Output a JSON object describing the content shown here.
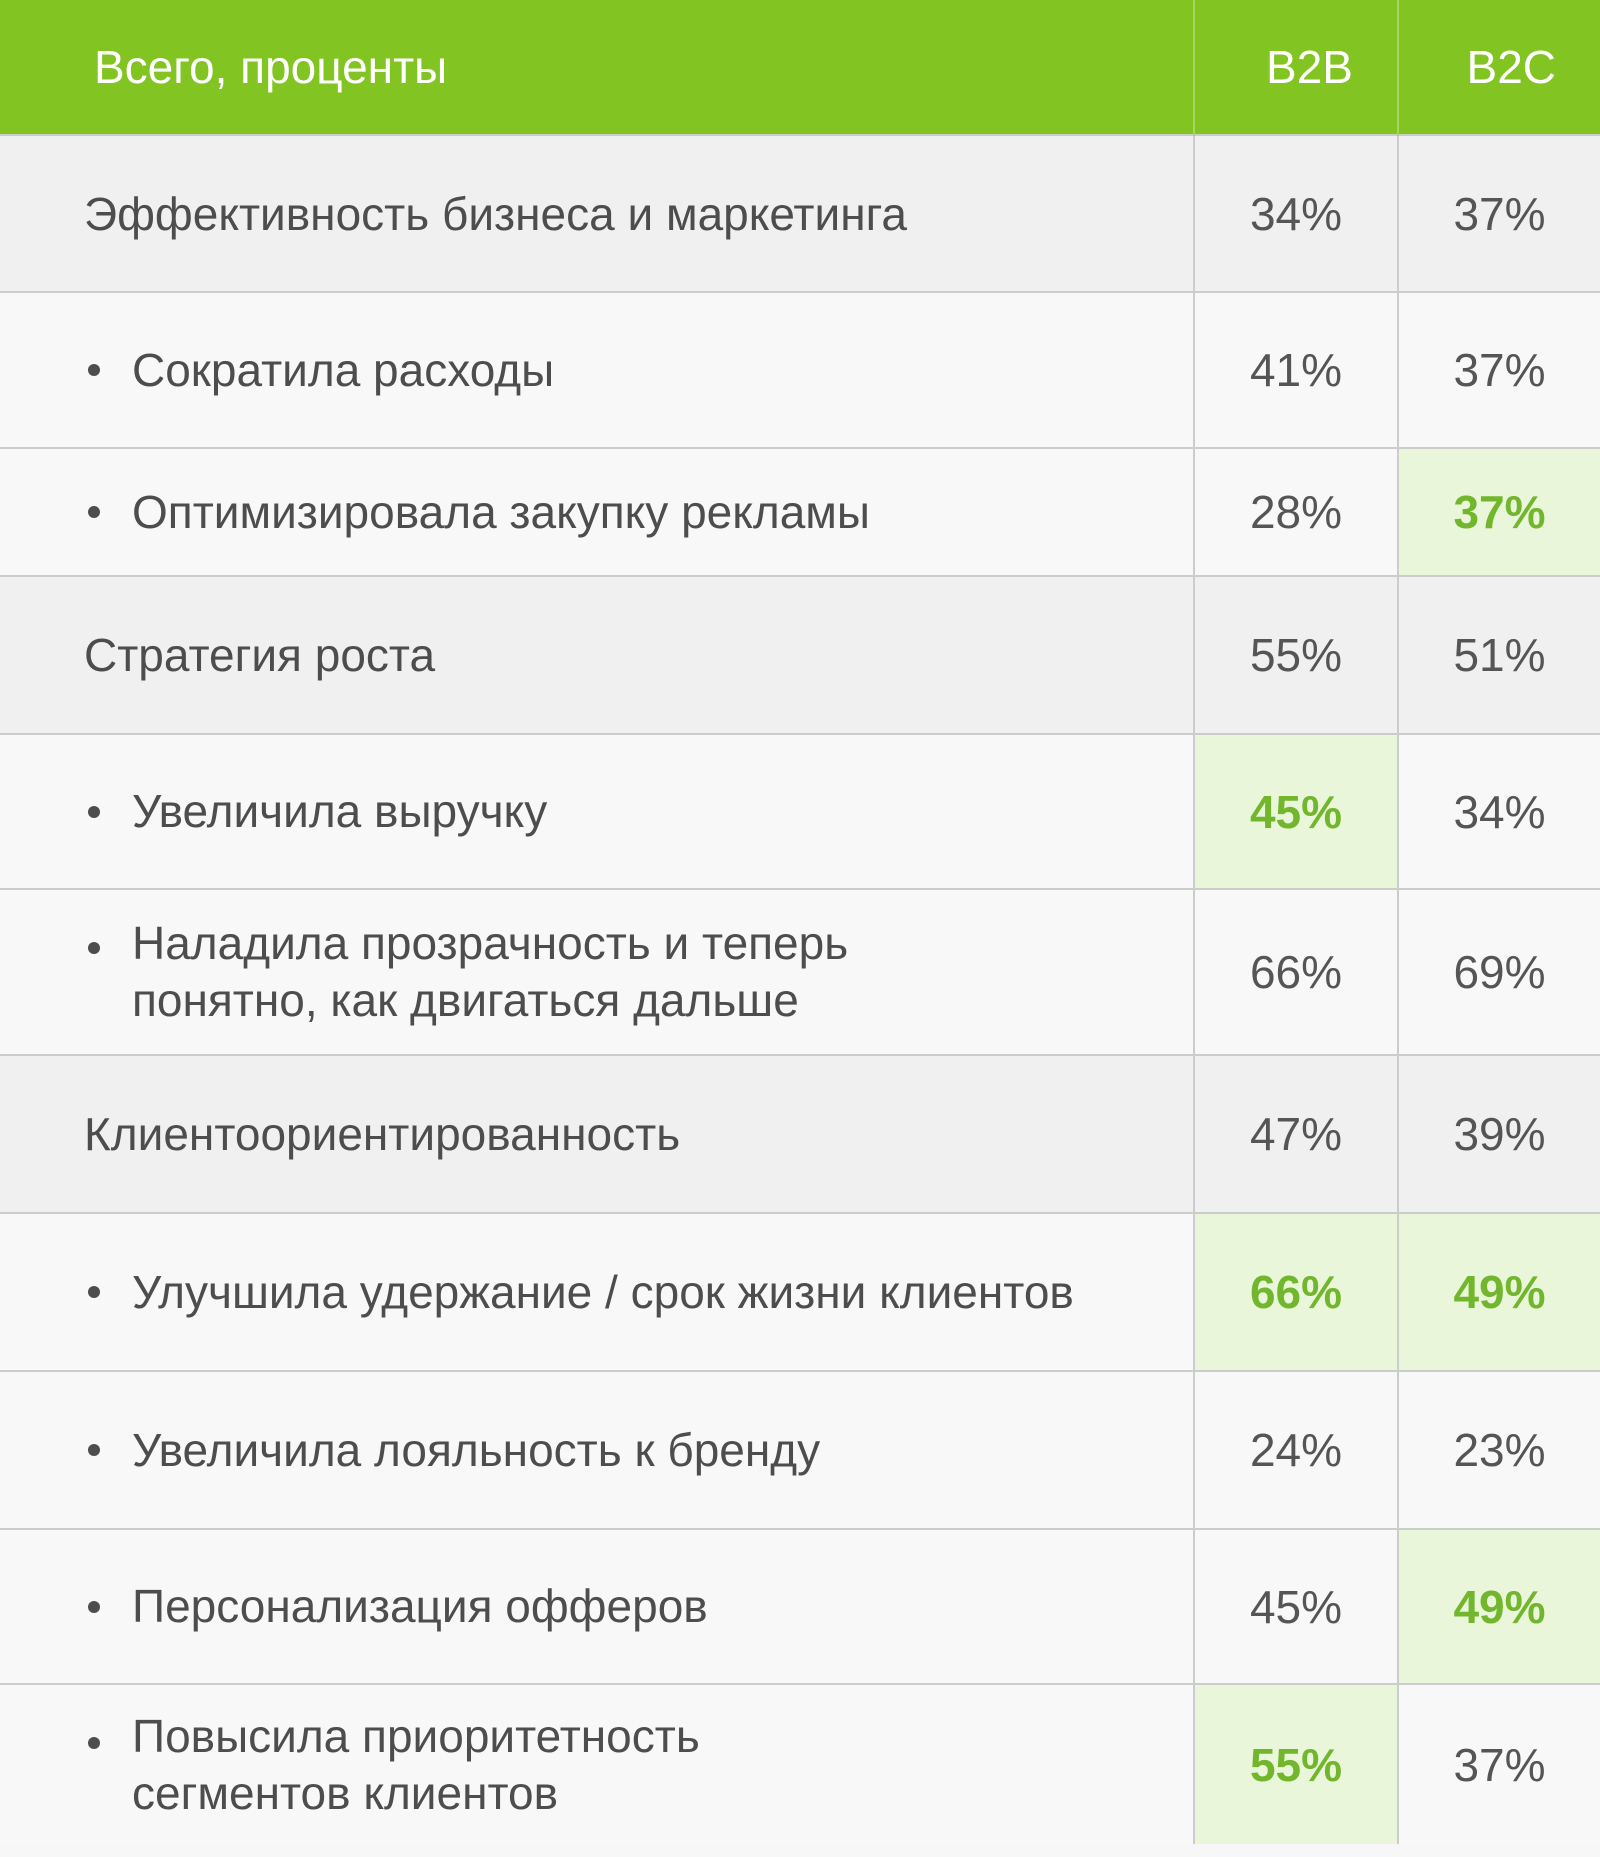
{
  "colors": {
    "header_bg": "#82c421",
    "header_text": "#ffffff",
    "category_row_bg": "#f1f0f0",
    "item_row_bg": "#f8f8f8",
    "highlight_bg": "#eaf6d9",
    "highlight_text": "#72b62d",
    "grid": "#cccccc"
  },
  "chart_data": {
    "type": "table",
    "columns": [
      "Всего, проценты",
      "B2B",
      "B2C"
    ],
    "rows": [
      {
        "label": "Эффективность бизнеса и маркетинга",
        "level": "category",
        "b2b": "34%",
        "b2c": "37%",
        "highlight_b2b": false,
        "highlight_b2c": false
      },
      {
        "label": "Сократила расходы",
        "level": "item",
        "b2b": "41%",
        "b2c": "37%",
        "highlight_b2b": false,
        "highlight_b2c": false
      },
      {
        "label": "Оптимизировала закупку рекламы",
        "level": "item",
        "b2b": "28%",
        "b2c": "37%",
        "highlight_b2b": false,
        "highlight_b2c": true
      },
      {
        "label": "Стратегия роста",
        "level": "category",
        "b2b": "55%",
        "b2c": "51%",
        "highlight_b2b": false,
        "highlight_b2c": false
      },
      {
        "label": "Увеличила выручку",
        "level": "item",
        "b2b": "45%",
        "b2c": "34%",
        "highlight_b2b": true,
        "highlight_b2c": false
      },
      {
        "label": "Наладила прозрачность и теперь",
        "label_line2": "понятно, как двигаться дальше",
        "level": "item",
        "b2b": "66%",
        "b2c": "69%",
        "highlight_b2b": false,
        "highlight_b2c": false
      },
      {
        "label": "Клиентоориентированность",
        "level": "category",
        "b2b": "47%",
        "b2c": "39%",
        "highlight_b2b": false,
        "highlight_b2c": false
      },
      {
        "label": "Улучшила удержание / срок жизни клиентов",
        "level": "item",
        "b2b": "66%",
        "b2c": "49%",
        "highlight_b2b": true,
        "highlight_b2c": true
      },
      {
        "label": "Увеличила лояльность к бренду",
        "level": "item",
        "b2b": "24%",
        "b2c": "23%",
        "highlight_b2b": false,
        "highlight_b2c": false
      },
      {
        "label": "Персонализация офферов",
        "level": "item",
        "b2b": "45%",
        "b2c": "49%",
        "highlight_b2b": false,
        "highlight_b2c": true
      },
      {
        "label": "Повысила приоритетность",
        "label_line2": "сегментов клиентов",
        "level": "item",
        "b2b": "55%",
        "b2c": "37%",
        "highlight_b2b": true,
        "highlight_b2c": false
      }
    ]
  }
}
